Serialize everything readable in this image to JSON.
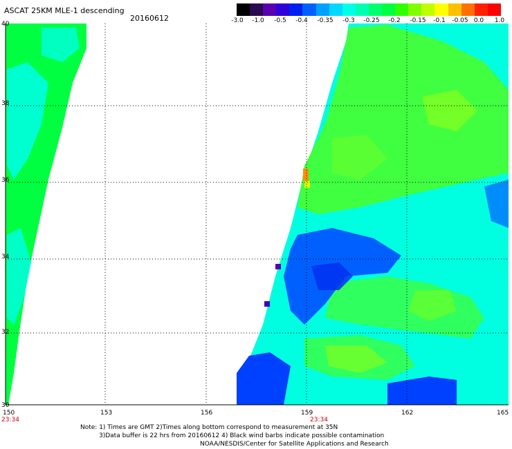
{
  "header": {
    "title": "ASCAT 25KM MLE-1 descending",
    "date": "20160612"
  },
  "colorbar": {
    "labels": [
      "-3.0",
      "-1.0",
      "-0.5",
      "-0.4",
      "-0.35",
      "-0.3",
      "-0.25",
      "-0.2",
      "-0.15",
      "-0.1",
      "-0.05",
      "0.0",
      "1.0"
    ],
    "colors": [
      "#000000",
      "#2a0a50",
      "#5a00b0",
      "#3000d8",
      "#0020f0",
      "#0060ff",
      "#00a0ff",
      "#00d8ff",
      "#00ffe8",
      "#00ffb0",
      "#00ff70",
      "#00ff40",
      "#30ff00",
      "#80ff00",
      "#c0ff00",
      "#ffff00",
      "#ffc000",
      "#ff7000",
      "#ff2000",
      "#ff0000"
    ]
  },
  "map": {
    "lon_labels": [
      "150",
      "153",
      "156",
      "159",
      "162",
      "165"
    ],
    "lat_labels": [
      "40",
      "38",
      "36",
      "34",
      "32",
      "30"
    ],
    "time_labels": [
      "23:34",
      "23:34"
    ],
    "palette": {
      "green": "#00ff40",
      "cyan": "#00ffe0",
      "blue": "#0040ff",
      "orange": "#ff9000",
      "purple": "#5a00b0"
    }
  },
  "notes": {
    "line1": "Note: 1) Times are GMT 2)Times along bottom correspond to measurement at 35N",
    "line2": "3)Data buffer is 22 hrs from 20160612 4) Black wind barbs indicate possible contamination",
    "line3": "NOAA/NESDIS/Center for Satellite Applications and Research"
  }
}
